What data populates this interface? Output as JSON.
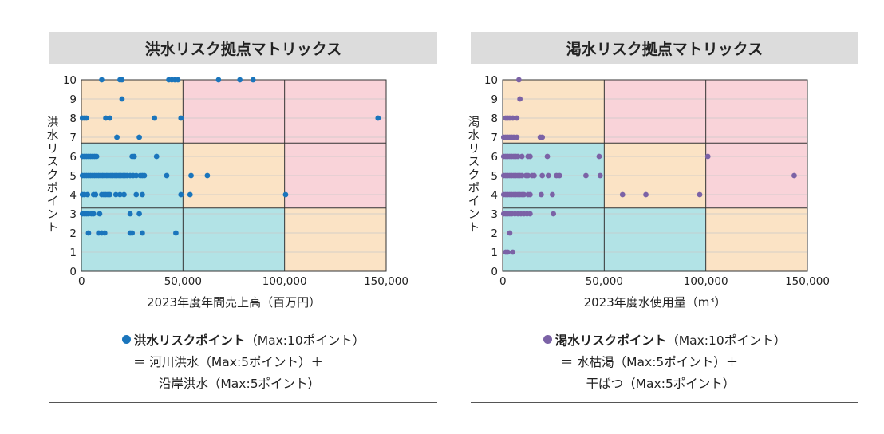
{
  "chart_data": [
    {
      "type": "scatter",
      "title": "洪水リスク拠点マトリックス",
      "xlabel": "2023年度年間売上高（百万円）",
      "ylabel": "洪水リスクポイント",
      "xlim": [
        0,
        150000
      ],
      "ylim": [
        0,
        10
      ],
      "x_ticks": [
        "0",
        "50,000",
        "100,000",
        "150,000"
      ],
      "y_ticks": [
        "0",
        "1",
        "2",
        "3",
        "4",
        "5",
        "6",
        "7",
        "8",
        "9",
        "10"
      ],
      "color": "#1a75bc",
      "zones": [
        {
          "x": [
            0,
            50000
          ],
          "y": [
            0,
            3.3
          ],
          "fill": "#b2e3e6"
        },
        {
          "x": [
            50000,
            100000
          ],
          "y": [
            0,
            3.3
          ],
          "fill": "#b2e3e6"
        },
        {
          "x": [
            100000,
            150000
          ],
          "y": [
            0,
            3.3
          ],
          "fill": "#fbe3c5"
        },
        {
          "x": [
            0,
            50000
          ],
          "y": [
            3.3,
            6.7
          ],
          "fill": "#b2e3e6"
        },
        {
          "x": [
            50000,
            100000
          ],
          "y": [
            3.3,
            6.7
          ],
          "fill": "#fbe3c5"
        },
        {
          "x": [
            100000,
            150000
          ],
          "y": [
            3.3,
            6.7
          ],
          "fill": "#f9d3d9"
        },
        {
          "x": [
            0,
            50000
          ],
          "y": [
            6.7,
            10
          ],
          "fill": "#fbe3c5"
        },
        {
          "x": [
            50000,
            100000
          ],
          "y": [
            6.7,
            10
          ],
          "fill": "#f9d3d9"
        },
        {
          "x": [
            100000,
            150000
          ],
          "y": [
            6.7,
            10
          ],
          "fill": "#f9d3d9"
        }
      ],
      "points": [
        [
          10000,
          10
        ],
        [
          19000,
          10
        ],
        [
          20000,
          10
        ],
        [
          43000,
          10
        ],
        [
          44500,
          10
        ],
        [
          46000,
          10
        ],
        [
          47500,
          10
        ],
        [
          67500,
          10
        ],
        [
          78000,
          10
        ],
        [
          84500,
          10
        ],
        [
          20000,
          9
        ],
        [
          500,
          8
        ],
        [
          1500,
          8
        ],
        [
          2500,
          8
        ],
        [
          12000,
          8
        ],
        [
          14000,
          8
        ],
        [
          36000,
          8
        ],
        [
          49000,
          8
        ],
        [
          146000,
          8
        ],
        [
          17500,
          7
        ],
        [
          28500,
          7
        ],
        [
          500,
          6
        ],
        [
          1500,
          6
        ],
        [
          2500,
          6
        ],
        [
          3500,
          6
        ],
        [
          4500,
          6
        ],
        [
          5500,
          6
        ],
        [
          6500,
          6
        ],
        [
          7500,
          6
        ],
        [
          25000,
          6
        ],
        [
          26000,
          6
        ],
        [
          37000,
          6
        ],
        [
          500,
          5
        ],
        [
          1500,
          5
        ],
        [
          2500,
          5
        ],
        [
          3500,
          5
        ],
        [
          4500,
          5
        ],
        [
          5500,
          5
        ],
        [
          6500,
          5
        ],
        [
          7500,
          5
        ],
        [
          8500,
          5
        ],
        [
          9500,
          5
        ],
        [
          10500,
          5
        ],
        [
          11500,
          5
        ],
        [
          12500,
          5
        ],
        [
          13500,
          5
        ],
        [
          14500,
          5
        ],
        [
          15500,
          5
        ],
        [
          16500,
          5
        ],
        [
          17500,
          5
        ],
        [
          18500,
          5
        ],
        [
          19500,
          5
        ],
        [
          20500,
          5
        ],
        [
          21500,
          5
        ],
        [
          22500,
          5
        ],
        [
          24000,
          5
        ],
        [
          25500,
          5
        ],
        [
          27000,
          5
        ],
        [
          29000,
          5
        ],
        [
          30000,
          5
        ],
        [
          31000,
          5
        ],
        [
          42000,
          5
        ],
        [
          54000,
          5
        ],
        [
          62000,
          5
        ],
        [
          500,
          4
        ],
        [
          1500,
          4
        ],
        [
          3000,
          4
        ],
        [
          6000,
          4
        ],
        [
          7000,
          4
        ],
        [
          10000,
          4
        ],
        [
          11000,
          4
        ],
        [
          12000,
          4
        ],
        [
          13000,
          4
        ],
        [
          14000,
          4
        ],
        [
          17000,
          4
        ],
        [
          19000,
          4
        ],
        [
          21000,
          4
        ],
        [
          27000,
          4
        ],
        [
          30000,
          4
        ],
        [
          49000,
          4
        ],
        [
          53500,
          4
        ],
        [
          100500,
          4
        ],
        [
          500,
          3
        ],
        [
          1500,
          3
        ],
        [
          2500,
          3
        ],
        [
          3500,
          3
        ],
        [
          5000,
          3
        ],
        [
          6000,
          3
        ],
        [
          9000,
          3
        ],
        [
          24000,
          3
        ],
        [
          28500,
          3
        ],
        [
          3500,
          2
        ],
        [
          8500,
          2
        ],
        [
          10000,
          2
        ],
        [
          11500,
          2
        ],
        [
          24000,
          2
        ],
        [
          25000,
          2
        ],
        [
          30000,
          2
        ],
        [
          46500,
          2
        ]
      ]
    },
    {
      "type": "scatter",
      "title": "渇水リスク拠点マトリックス",
      "xlabel": "2023年度水使用量（m³）",
      "ylabel": "渇水リスクポイント",
      "xlim": [
        0,
        150000
      ],
      "ylim": [
        0,
        10
      ],
      "x_ticks": [
        "0",
        "50,000",
        "100,000",
        "150,000"
      ],
      "y_ticks": [
        "0",
        "1",
        "2",
        "3",
        "4",
        "5",
        "6",
        "7",
        "8",
        "9",
        "10"
      ],
      "color": "#7b62a6",
      "zones": [
        {
          "x": [
            0,
            50000
          ],
          "y": [
            0,
            3.3
          ],
          "fill": "#b2e3e6"
        },
        {
          "x": [
            50000,
            100000
          ],
          "y": [
            0,
            3.3
          ],
          "fill": "#b2e3e6"
        },
        {
          "x": [
            100000,
            150000
          ],
          "y": [
            0,
            3.3
          ],
          "fill": "#fbe3c5"
        },
        {
          "x": [
            0,
            50000
          ],
          "y": [
            3.3,
            6.7
          ],
          "fill": "#b2e3e6"
        },
        {
          "x": [
            50000,
            100000
          ],
          "y": [
            3.3,
            6.7
          ],
          "fill": "#fbe3c5"
        },
        {
          "x": [
            100000,
            150000
          ],
          "y": [
            3.3,
            6.7
          ],
          "fill": "#f9d3d9"
        },
        {
          "x": [
            0,
            50000
          ],
          "y": [
            6.7,
            10
          ],
          "fill": "#fbe3c5"
        },
        {
          "x": [
            50000,
            100000
          ],
          "y": [
            6.7,
            10
          ],
          "fill": "#f9d3d9"
        },
        {
          "x": [
            100000,
            150000
          ],
          "y": [
            6.7,
            10
          ],
          "fill": "#f9d3d9"
        }
      ],
      "points": [
        [
          8000,
          10
        ],
        [
          8500,
          9
        ],
        [
          1500,
          8
        ],
        [
          2500,
          8
        ],
        [
          3500,
          8
        ],
        [
          5000,
          8
        ],
        [
          7000,
          8
        ],
        [
          500,
          7
        ],
        [
          1500,
          7
        ],
        [
          2500,
          7
        ],
        [
          3500,
          7
        ],
        [
          4500,
          7
        ],
        [
          5500,
          7
        ],
        [
          7000,
          7
        ],
        [
          18500,
          7
        ],
        [
          19500,
          7
        ],
        [
          500,
          6
        ],
        [
          1500,
          6
        ],
        [
          2500,
          6
        ],
        [
          3500,
          6
        ],
        [
          4500,
          6
        ],
        [
          5500,
          6
        ],
        [
          6500,
          6
        ],
        [
          7500,
          6
        ],
        [
          9500,
          6
        ],
        [
          12500,
          6
        ],
        [
          13500,
          6
        ],
        [
          22000,
          6
        ],
        [
          47500,
          6
        ],
        [
          101000,
          6
        ],
        [
          500,
          5
        ],
        [
          1500,
          5
        ],
        [
          2500,
          5
        ],
        [
          3500,
          5
        ],
        [
          4500,
          5
        ],
        [
          5500,
          5
        ],
        [
          6500,
          5
        ],
        [
          7500,
          5
        ],
        [
          8500,
          5
        ],
        [
          9500,
          5
        ],
        [
          11500,
          5
        ],
        [
          12500,
          5
        ],
        [
          14500,
          5
        ],
        [
          15500,
          5
        ],
        [
          19500,
          5
        ],
        [
          22500,
          5
        ],
        [
          26500,
          5
        ],
        [
          28000,
          5
        ],
        [
          41000,
          5
        ],
        [
          48000,
          5
        ],
        [
          143500,
          5
        ],
        [
          500,
          4
        ],
        [
          1500,
          4
        ],
        [
          2500,
          4
        ],
        [
          3500,
          4
        ],
        [
          4500,
          4
        ],
        [
          5500,
          4
        ],
        [
          6500,
          4
        ],
        [
          7500,
          4
        ],
        [
          8500,
          4
        ],
        [
          9500,
          4
        ],
        [
          10500,
          4
        ],
        [
          12500,
          4
        ],
        [
          13500,
          4
        ],
        [
          19000,
          4
        ],
        [
          24500,
          4
        ],
        [
          59000,
          4
        ],
        [
          70500,
          4
        ],
        [
          97000,
          4
        ],
        [
          500,
          3
        ],
        [
          1500,
          3
        ],
        [
          2500,
          3
        ],
        [
          3500,
          3
        ],
        [
          4500,
          3
        ],
        [
          6000,
          3
        ],
        [
          7500,
          3
        ],
        [
          9000,
          3
        ],
        [
          10500,
          3
        ],
        [
          12000,
          3
        ],
        [
          13500,
          3
        ],
        [
          25000,
          3
        ],
        [
          3500,
          2
        ],
        [
          1500,
          1
        ],
        [
          2500,
          1
        ],
        [
          5000,
          1
        ]
      ]
    }
  ],
  "legends": [
    {
      "color": "#1a75bc",
      "line1_bold": "洪水リスクポイント",
      "line1_rest": "（Max:10ポイント）",
      "line2": "＝ 河川洪水（Max:5ポイント）＋",
      "line3": "沿岸洪水（Max:5ポイント）"
    },
    {
      "color": "#7b62a6",
      "line1_bold": "渇水リスクポイント",
      "line1_rest": "（Max:10ポイント）",
      "line2": "＝ 水枯渇（Max:5ポイント）＋",
      "line3": "干ばつ（Max:5ポイント）"
    }
  ]
}
